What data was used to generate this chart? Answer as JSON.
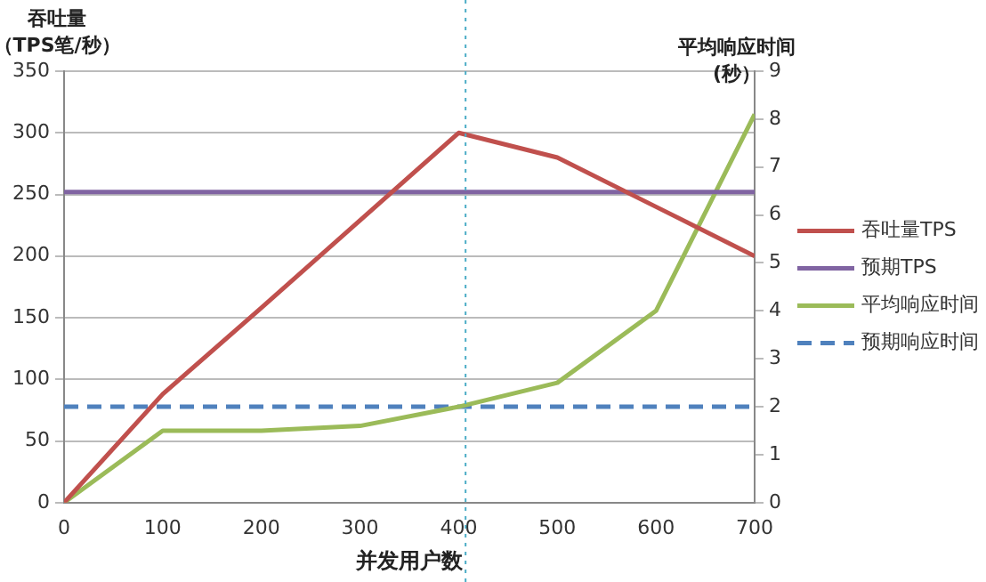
{
  "chart_data": {
    "type": "line",
    "xlabel": "并发用户数",
    "ylabel": "吞吐量（TPS笔/秒）",
    "y2label": "平均响应时间(秒）",
    "x": [
      0,
      100,
      200,
      300,
      400,
      500,
      600,
      700
    ],
    "series": [
      {
        "name": "吞吐量TPS",
        "color": "#c0504d",
        "values": [
          0,
          88,
          158,
          229,
          300,
          280,
          240,
          200
        ]
      },
      {
        "name": "预期TPS",
        "color": "#8064a2",
        "values": [
          252,
          252,
          252,
          252,
          252,
          252,
          252,
          252
        ]
      },
      {
        "name": "平均响应时间",
        "color": "#9bbb59",
        "axis": "y2",
        "values": [
          0,
          1.5,
          1.5,
          1.6,
          2,
          2.5,
          4,
          8.1
        ]
      },
      {
        "name": "预期响应时间",
        "color": "#4f81bd",
        "axis": "y2",
        "line_style": "dashed",
        "values": [
          2,
          2,
          2,
          2,
          2,
          2,
          2,
          2
        ]
      }
    ],
    "ref_lines": [
      {
        "axis": "x",
        "value": 407,
        "color": "#4bacc6",
        "line_style": "dotted"
      }
    ],
    "xlim": [
      0,
      700
    ],
    "xticks": [
      0,
      100,
      200,
      300,
      400,
      500,
      600,
      700
    ],
    "ylim": [
      0,
      350
    ],
    "yticks": [
      0,
      50,
      100,
      150,
      200,
      250,
      300,
      350
    ],
    "y2lim": [
      0,
      9
    ],
    "y2ticks": [
      0,
      1,
      2,
      3,
      4,
      5,
      6,
      7,
      8,
      9
    ],
    "grid": "y",
    "legend": "right",
    "marker": "none",
    "line_style": "solid"
  }
}
